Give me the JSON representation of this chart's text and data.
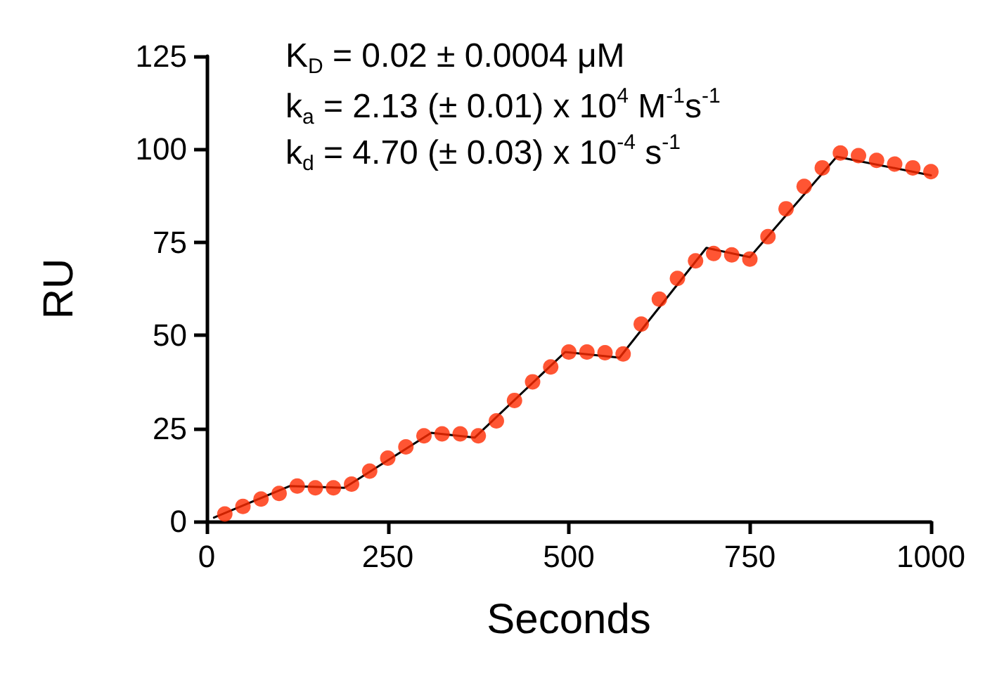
{
  "chart_data": {
    "type": "scatter",
    "xlabel": "Seconds",
    "ylabel": "RU",
    "annotations": [
      "K$_{D}$ = 0.02 ± 0.0004 μM",
      "k$_{a}$ = 2.13 (± 0.01) x 10$^{4}$ M$^{-1}$s$^{-1}$",
      "k$_{d}$ = 4.70 (± 0.03) x 10$^{-4}$ s$^{-1}$"
    ],
    "xlim": [
      0,
      1000
    ],
    "xticks": [
      0,
      250,
      500,
      750,
      1000
    ],
    "ylim": [
      0,
      125
    ],
    "yticks": [
      0,
      25,
      50,
      75,
      100,
      125
    ],
    "grid": false,
    "series": [
      {
        "type": "line",
        "color": "#000000",
        "line_style": "solid",
        "marker": "none",
        "x": [
          10,
          115,
          190,
          310,
          370,
          495,
          570,
          690,
          750,
          870,
          1000
        ],
        "values": [
          1,
          9.5,
          9,
          23.8,
          22.5,
          45.5,
          44,
          73.5,
          71,
          98,
          93
        ]
      },
      {
        "color": "#ff2a00",
        "marker": "circle",
        "x": [
          25,
          50,
          75,
          100,
          125,
          150,
          175,
          200,
          225,
          250,
          275,
          300,
          325,
          350,
          375,
          400,
          425,
          450,
          475,
          500,
          525,
          550,
          575,
          600,
          625,
          650,
          675,
          700,
          725,
          750,
          775,
          800,
          825,
          850,
          875,
          900,
          925,
          950,
          975,
          1000
        ],
        "values": [
          2,
          4,
          6,
          7.5,
          9.5,
          9,
          9,
          10,
          13.5,
          17,
          20,
          23,
          23.5,
          23.5,
          23,
          27,
          32.5,
          37.5,
          41.5,
          45.5,
          45.5,
          45.3,
          45,
          53,
          59.7,
          65.3,
          70,
          72,
          71.6,
          70.5,
          76.5,
          84,
          90,
          95,
          99,
          98.3,
          97,
          96,
          95,
          94
        ]
      }
    ]
  }
}
